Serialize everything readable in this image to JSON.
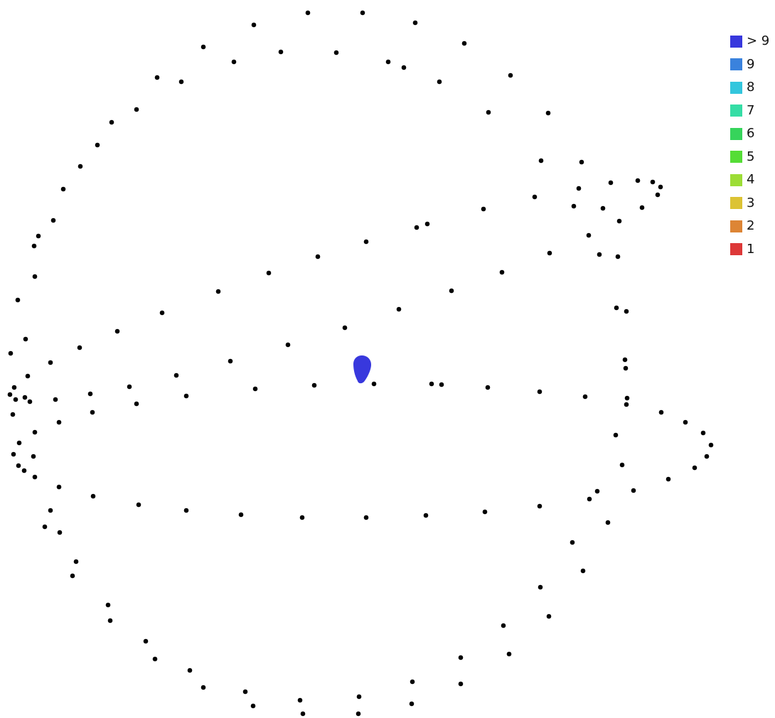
{
  "legend": {
    "items": [
      {
        "label": "> 9",
        "color": "#3838dd"
      },
      {
        "label": "9",
        "color": "#3a82dd"
      },
      {
        "label": "8",
        "color": "#33c6dd"
      },
      {
        "label": "7",
        "color": "#35dda5"
      },
      {
        "label": "6",
        "color": "#36d45b"
      },
      {
        "label": "5",
        "color": "#55dd36"
      },
      {
        "label": "4",
        "color": "#9cdd36"
      },
      {
        "label": "3",
        "color": "#dcc334"
      },
      {
        "label": "2",
        "color": "#dd8535"
      },
      {
        "label": "1",
        "color": "#dd3838"
      }
    ]
  },
  "overlap_region": {
    "level": "> 9",
    "color": "#3838dd"
  },
  "camera_point_color": "#000000"
}
